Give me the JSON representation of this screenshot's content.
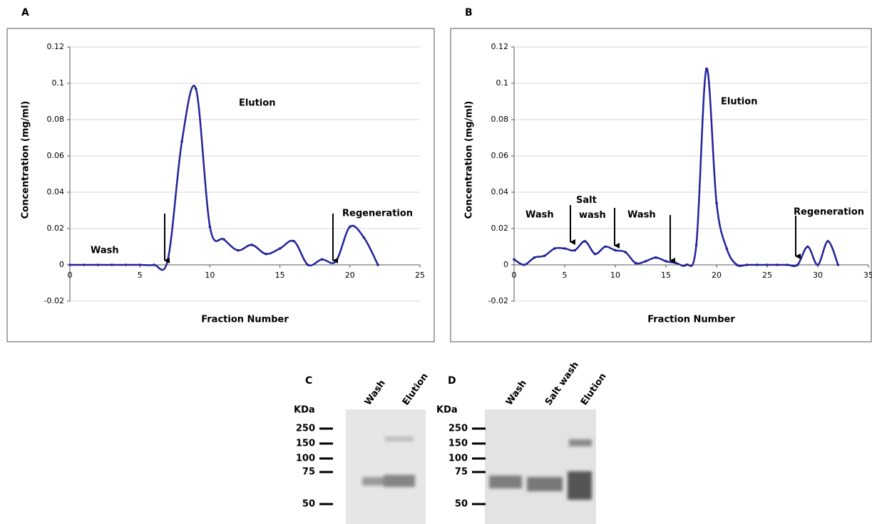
{
  "chart_data": [
    {
      "type": "line",
      "panel_label": "A",
      "x_label": "Fraction Number",
      "y_label": "Concentration (mg/ml)",
      "x": [
        0,
        1,
        2,
        3,
        4,
        5,
        6,
        7,
        8,
        9,
        10,
        11,
        12,
        13,
        14,
        15,
        16,
        17,
        18,
        19,
        20,
        21,
        22
      ],
      "values": [
        0,
        0,
        0,
        0,
        0,
        0,
        0,
        0.003,
        0.068,
        0.097,
        0.021,
        0.014,
        0.008,
        0.011,
        0.006,
        0.009,
        0.013,
        0,
        0.003,
        0.002,
        0.021,
        0.015,
        0
      ],
      "color": "#23239b",
      "xlim": [
        0,
        25
      ],
      "xticks": [
        0,
        5,
        10,
        15,
        20,
        25
      ],
      "ylim": [
        -0.02,
        0.12
      ],
      "yticks": [
        -0.02,
        0,
        0.02,
        0.04,
        0.06,
        0.08,
        0.1,
        0.12
      ],
      "grid": true,
      "annotations": [
        "Elution",
        "Wash",
        "Regeneration"
      ]
    },
    {
      "type": "line",
      "panel_label": "B",
      "x_label": "Fraction Number",
      "y_label": "Concentration (mg/ml)",
      "x": [
        0,
        1,
        2,
        3,
        4,
        5,
        6,
        7,
        8,
        9,
        10,
        11,
        12,
        13,
        14,
        15,
        16,
        17,
        18,
        19,
        20,
        21,
        22,
        23,
        24,
        25,
        26,
        27,
        28,
        29,
        30,
        31,
        32
      ],
      "values": [
        0.003,
        0,
        0.004,
        0.005,
        0.009,
        0.009,
        0.008,
        0.013,
        0.006,
        0.01,
        0.008,
        0.007,
        0.001,
        0.002,
        0.004,
        0.002,
        0.001,
        0,
        0.011,
        0.108,
        0.034,
        0.009,
        0,
        0,
        0,
        0,
        0,
        0,
        0,
        0.01,
        0,
        0.013,
        0
      ],
      "color": "#23239b",
      "xlim": [
        0,
        35
      ],
      "xticks": [
        0,
        5,
        10,
        15,
        20,
        25,
        30,
        35
      ],
      "ylim": [
        -0.02,
        0.12
      ],
      "yticks": [
        -0.02,
        0,
        0.02,
        0.04,
        0.06,
        0.08,
        0.1,
        0.12
      ],
      "grid": true,
      "annotations": [
        "Elution",
        "Wash",
        "Salt wash",
        "Wash",
        "Regeneration"
      ]
    }
  ],
  "gels": [
    {
      "panel_label": "C",
      "unit": "KDa",
      "lanes": [
        "Wash",
        "Elution"
      ],
      "markers": [
        250,
        150,
        100,
        75,
        50
      ]
    },
    {
      "panel_label": "D",
      "unit": "KDa",
      "lanes": [
        "Wash",
        "Salt wash",
        "Elution"
      ],
      "markers": [
        250,
        150,
        100,
        75,
        50
      ]
    }
  ]
}
